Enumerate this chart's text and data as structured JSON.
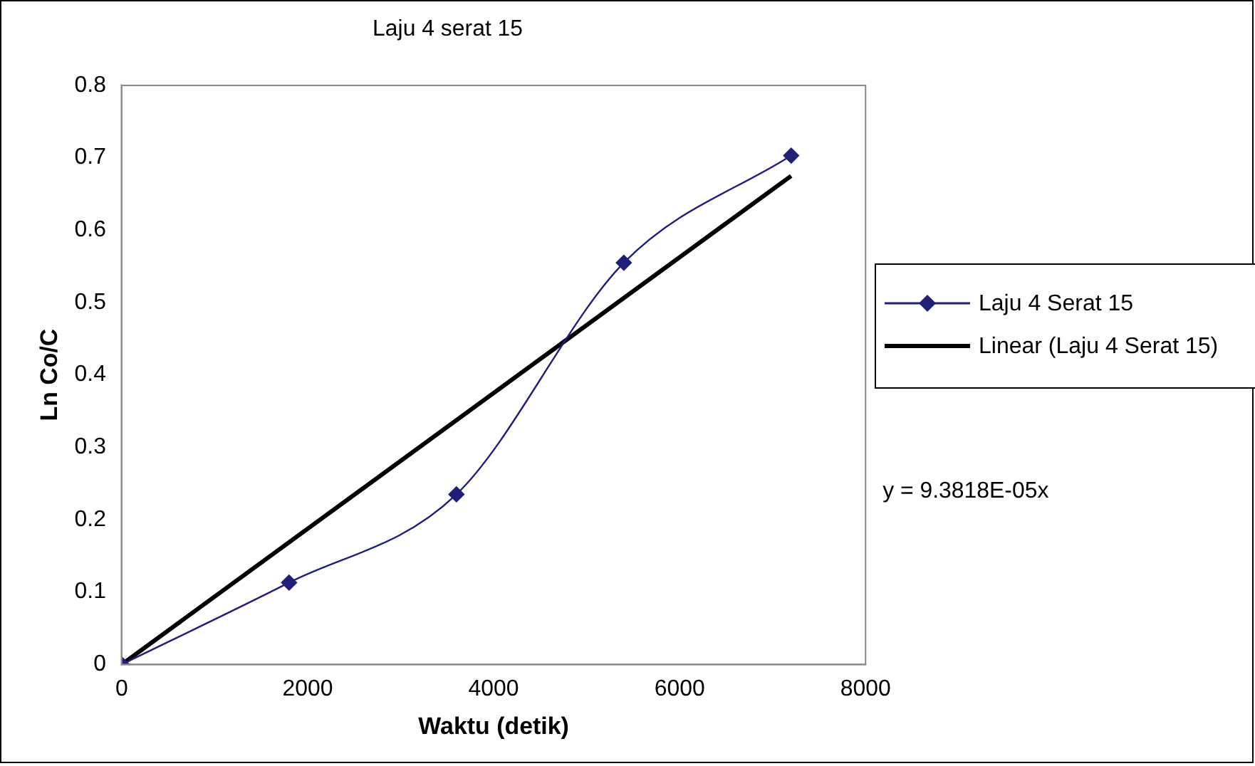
{
  "chart_data": {
    "type": "line",
    "title": "Laju 4 serat 15",
    "xlabel": "Waktu (detik)",
    "ylabel": "Ln Co/C",
    "x": [
      0,
      1800,
      3600,
      5400,
      7200
    ],
    "series": [
      {
        "name": "Laju 4 Serat 15",
        "color": "#1f1f7a",
        "values": [
          0,
          0.113,
          0.235,
          0.555,
          0.703
        ],
        "marker": "diamond"
      },
      {
        "name": "Linear (Laju 4 Serat 15)",
        "color": "#000000",
        "x": [
          0,
          7200
        ],
        "values": [
          0,
          0.675
        ],
        "marker": "none"
      }
    ],
    "xlim": [
      0,
      8000
    ],
    "xticks": [
      0,
      2000,
      4000,
      6000,
      8000
    ],
    "ylim": [
      0,
      0.8
    ],
    "yticks": [
      0,
      0.1,
      0.2,
      0.3,
      0.4,
      0.5,
      0.6,
      0.7,
      0.8
    ],
    "grid": false,
    "legend": "right",
    "annotations": [
      "y = 9.3818E-05x"
    ]
  }
}
